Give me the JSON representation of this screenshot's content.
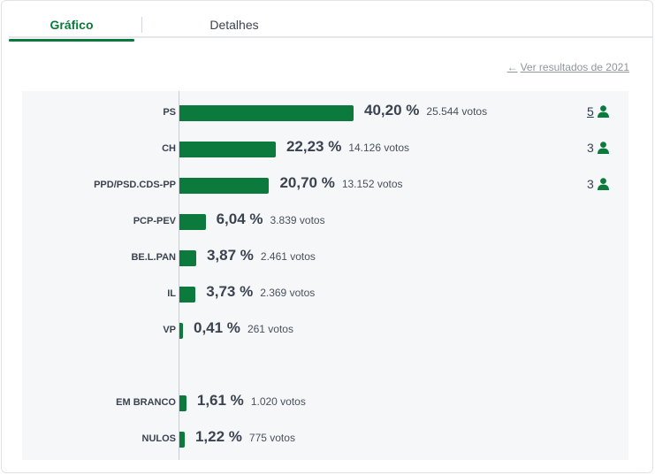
{
  "tabs": {
    "grafico": "Gráfico",
    "detalhes": "Detalhes"
  },
  "previous_results_link": "Ver resultados de 2021",
  "colors": {
    "accent": "#0c7a3c",
    "panel": "#f5f7f9"
  },
  "chart_data": {
    "type": "bar",
    "orientation": "horizontal",
    "categories": [
      "PS",
      "CH",
      "PPD/PSD.CDS-PP",
      "PCP-PEV",
      "BE.L.PAN",
      "IL",
      "VP",
      "EM BRANCO",
      "NULOS"
    ],
    "values": [
      40.2,
      22.23,
      20.7,
      6.04,
      3.87,
      3.73,
      0.41,
      1.61,
      1.22
    ],
    "rows": [
      {
        "party": "PS",
        "pct": "40,20 %",
        "votes": "25.544 votos",
        "seats": "5",
        "seats_link": true
      },
      {
        "party": "CH",
        "pct": "22,23 %",
        "votes": "14.126 votos",
        "seats": "3",
        "seats_link": false
      },
      {
        "party": "PPD/PSD.CDS-PP",
        "pct": "20,70 %",
        "votes": "13.152 votos",
        "seats": "3",
        "seats_link": false
      },
      {
        "party": "PCP-PEV",
        "pct": "6,04 %",
        "votes": "3.839 votos",
        "seats": null
      },
      {
        "party": "BE.L.PAN",
        "pct": "3,87 %",
        "votes": "2.461 votos",
        "seats": null
      },
      {
        "party": "IL",
        "pct": "3,73 %",
        "votes": "2.369 votos",
        "seats": null
      },
      {
        "party": "VP",
        "pct": "0,41 %",
        "votes": "261 votos",
        "seats": null
      },
      {
        "party": "EM BRANCO",
        "pct": "1,61 %",
        "votes": "1.020 votos",
        "seats": null
      },
      {
        "party": "NULOS",
        "pct": "1,22 %",
        "votes": "775 votos",
        "seats": null
      }
    ],
    "seat_icon": "person-icon",
    "grid": false
  }
}
